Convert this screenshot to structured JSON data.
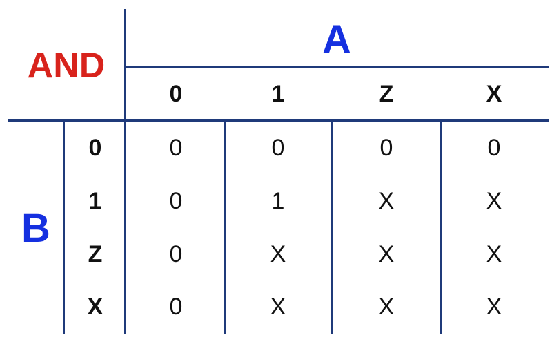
{
  "table": {
    "title": "AND",
    "column_axis_label": "A",
    "row_axis_label": "B",
    "column_headers": [
      "0",
      "1",
      "Z",
      "X"
    ],
    "row_headers": [
      "0",
      "1",
      "Z",
      "X"
    ],
    "rows": [
      [
        "0",
        "0",
        "0",
        "0"
      ],
      [
        "0",
        "1",
        "X",
        "X"
      ],
      [
        "0",
        "X",
        "X",
        "X"
      ],
      [
        "0",
        "X",
        "X",
        "X"
      ]
    ]
  },
  "colors": {
    "title": "#d8231c",
    "axis_labels": "#1530e0",
    "grid_lines": "#1f3a7a",
    "text": "#111111"
  }
}
